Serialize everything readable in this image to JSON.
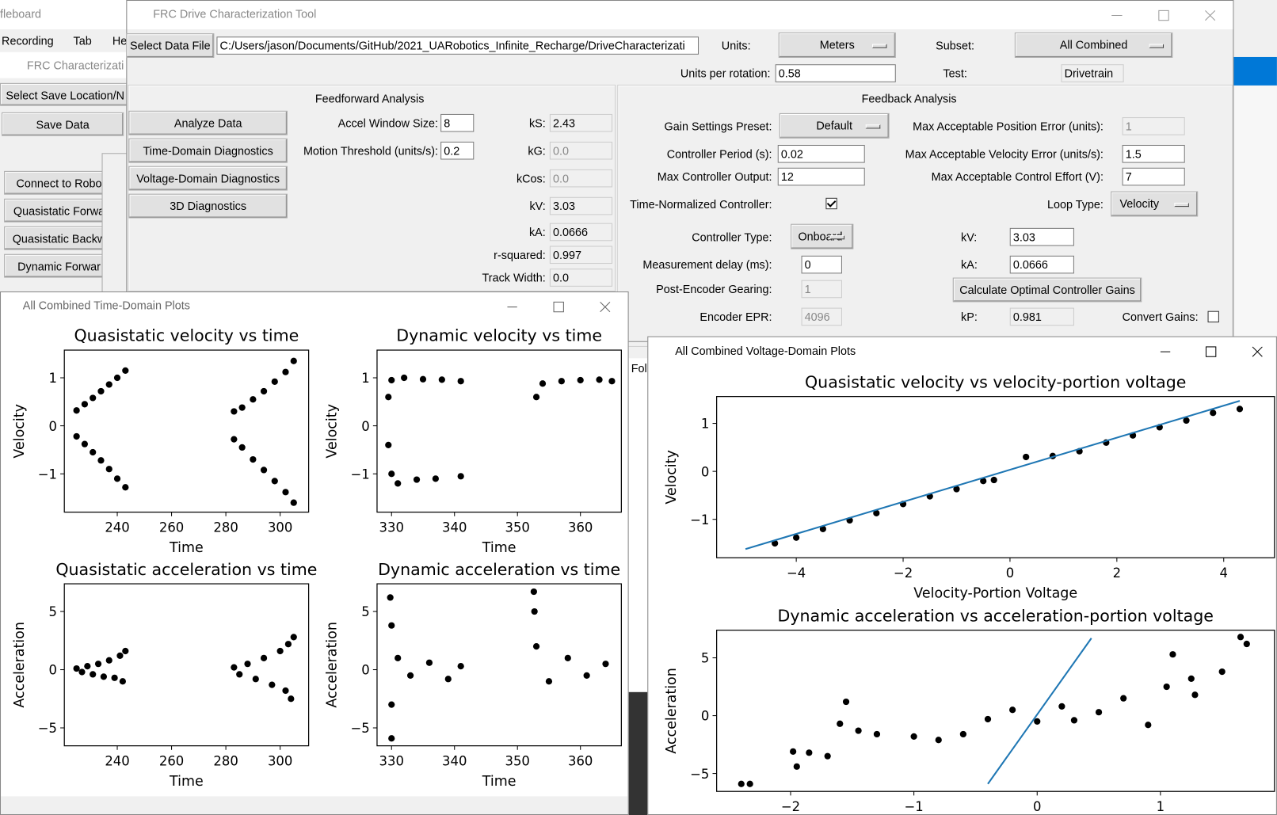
{
  "background": {
    "title": "fleboard",
    "menu": [
      "Recording",
      "Tab",
      "He"
    ],
    "char_window": {
      "title": "FRC Characterizati",
      "buttons": [
        "Select Save Location/N",
        "Save Data",
        "Connect to Robo",
        "Quasistatic Forwa",
        "Quasistatic Backw",
        "Dynamic Forwar"
      ]
    },
    "fragment": "Fol"
  },
  "main_window": {
    "title": "FRC Drive Characterization Tool",
    "select_button": "Select Data File",
    "file_path": "C:/Users/jason/Documents/GitHub/2021_UARobotics_Infinite_Recharge/DriveCharacterizati",
    "units_label": "Units:",
    "units": "Meters",
    "subset_label": "Subset:",
    "subset": "All Combined",
    "upr_label": "Units per rotation:",
    "upr": "0.58",
    "test_label": "Test:",
    "test": "Drivetrain",
    "feedforward": {
      "header": "Feedforward Analysis",
      "buttons": [
        "Analyze Data",
        "Time-Domain Diagnostics",
        "Voltage-Domain Diagnostics",
        "3D Diagnostics"
      ],
      "settings": [
        [
          "Accel Window Size:",
          "8"
        ],
        [
          "Motion Threshold (units/s):",
          "0.2"
        ]
      ],
      "results": [
        [
          "kS:",
          "2.43"
        ],
        [
          "kG:",
          "0.0"
        ],
        [
          "kCos:",
          "0.0"
        ],
        [
          "kV:",
          "3.03"
        ],
        [
          "kA:",
          "0.0666"
        ],
        [
          "r-squared:",
          "0.997"
        ],
        [
          "Track Width:",
          "0.0"
        ]
      ]
    },
    "feedback": {
      "header": "Feedback Analysis",
      "preset_label": "Gain Settings Preset:",
      "preset": "Default",
      "period_label": "Controller Period (s):",
      "period": "0.02",
      "output_label": "Max Controller Output:",
      "output": "12",
      "normalized_label": "Time-Normalized Controller:",
      "type_label": "Controller Type:",
      "type": "Onboard",
      "delay_label": "Measurement delay (ms):",
      "delay": "0",
      "gearing_label": "Post-Encoder Gearing:",
      "gearing": "1",
      "epr_label": "Encoder EPR:",
      "epr": "4096",
      "pos_err_label": "Max Acceptable Position Error (units):",
      "pos_err": "1",
      "vel_err_label": "Max Acceptable Velocity Error (units/s):",
      "vel_err": "1.5",
      "effort_label": "Max Acceptable Control Effort (V):",
      "effort": "7",
      "loop_label": "Loop Type:",
      "loop": "Velocity",
      "kv_label": "kV:",
      "kv": "3.03",
      "ka_label": "kA:",
      "ka": "0.0666",
      "calc_button": "Calculate Optimal Controller Gains",
      "kp_label": "kP:",
      "kp": "0.981",
      "convert_label": "Convert Gains:"
    }
  },
  "time_domain_window": {
    "title": "All Combined Time-Domain Plots"
  },
  "voltage_domain_window": {
    "title": "All Combined Voltage-Domain Plots"
  },
  "chart_data": [
    {
      "type": "scatter",
      "title": "Quasistatic velocity vs time",
      "x_label": "Time",
      "y_label": "Velocity",
      "xlim": [
        220.5,
        310.5
      ],
      "ylim": [
        -1.797,
        1.576
      ],
      "xticks": [
        240,
        260,
        280,
        300
      ],
      "yticks": [
        {
          "value": -1,
          "label": "−1"
        },
        0,
        1
      ],
      "series": [
        {
          "color": "#000000",
          "x": [
            225,
            228,
            231,
            234,
            237,
            240,
            243,
            225,
            228,
            231,
            234,
            237,
            240,
            243,
            283,
            286,
            290,
            294,
            298,
            302,
            305,
            283,
            286,
            290,
            294,
            298,
            302,
            305
          ],
          "values": [
            0.32,
            0.45,
            0.58,
            0.72,
            0.86,
            1.0,
            1.15,
            -0.22,
            -0.38,
            -0.55,
            -0.72,
            -0.9,
            -1.1,
            -1.28,
            0.3,
            0.38,
            0.55,
            0.72,
            0.92,
            1.12,
            1.35,
            -0.28,
            -0.45,
            -0.7,
            -0.92,
            -1.15,
            -1.38,
            -1.6
          ]
        }
      ]
    },
    {
      "type": "scatter",
      "title": "Dynamic velocity vs time",
      "x_label": "Time",
      "y_label": "Velocity",
      "xlim": [
        327.7,
        366.5
      ],
      "ylim": [
        -1.797,
        1.576
      ],
      "xticks": [
        330,
        340,
        350,
        360
      ],
      "yticks": [
        {
          "value": -1,
          "label": "−1"
        },
        0,
        1
      ],
      "series": [
        {
          "color": "#000000",
          "x": [
            329.5,
            330,
            332,
            335,
            338,
            341,
            329.5,
            330,
            331,
            334,
            337,
            341,
            353,
            354,
            357,
            360,
            363,
            365
          ],
          "values": [
            0.6,
            0.95,
            1.0,
            0.97,
            0.96,
            0.93,
            -0.4,
            -1.0,
            -1.2,
            -1.12,
            -1.1,
            -1.05,
            0.6,
            0.88,
            0.93,
            0.95,
            0.96,
            0.93
          ]
        }
      ]
    },
    {
      "type": "scatter",
      "title": "Quasistatic acceleration vs time",
      "x_label": "Time",
      "y_label": "Acceleration",
      "xlim": [
        220.5,
        310.5
      ],
      "ylim": [
        -6.54,
        7.38
      ],
      "xticks": [
        240,
        260,
        280,
        300
      ],
      "yticks": [
        {
          "value": -5,
          "label": "−5"
        },
        0,
        5
      ],
      "series": [
        {
          "color": "#000000",
          "x": [
            225,
            227,
            229,
            231,
            233,
            235,
            237,
            239,
            241,
            242,
            243,
            283,
            285,
            288,
            291,
            294,
            297,
            300,
            302,
            303,
            304,
            305
          ],
          "values": [
            0.1,
            -0.2,
            0.3,
            -0.4,
            0.5,
            -0.6,
            0.8,
            -0.7,
            1.2,
            -1.0,
            1.6,
            0.2,
            -0.4,
            0.5,
            -0.8,
            1.0,
            -1.3,
            1.6,
            -1.8,
            2.2,
            -2.5,
            2.8
          ]
        }
      ]
    },
    {
      "type": "scatter",
      "title": "Dynamic acceleration vs time",
      "x_label": "Time",
      "y_label": "Acceleration",
      "xlim": [
        327.7,
        366.5
      ],
      "ylim": [
        -6.54,
        7.38
      ],
      "xticks": [
        330,
        340,
        350,
        360
      ],
      "yticks": [
        {
          "value": -5,
          "label": "−5"
        },
        0,
        5
      ],
      "series": [
        {
          "color": "#000000",
          "x": [
            329.8,
            330,
            330,
            330,
            331,
            333,
            336,
            339,
            341,
            352.6,
            352.7,
            353,
            355,
            358,
            361,
            364
          ],
          "values": [
            6.2,
            3.8,
            -3,
            -5.9,
            1,
            -0.5,
            0.6,
            -0.8,
            0.3,
            6.7,
            5,
            2,
            -1,
            1,
            -0.5,
            0.5
          ]
        }
      ]
    },
    {
      "type": "scatter",
      "title": "Quasistatic velocity vs velocity-portion voltage",
      "x_label": "Velocity-Portion Voltage",
      "y_label": "Velocity",
      "xlim": [
        -5.49,
        4.95
      ],
      "ylim": [
        -1.8,
        1.56
      ],
      "xticks": [
        {
          "value": -4,
          "label": "−4"
        },
        {
          "value": -2,
          "label": "−2"
        },
        0,
        2,
        4
      ],
      "yticks": [
        {
          "value": -1,
          "label": "−1"
        },
        0,
        1
      ],
      "series": [
        {
          "color": "#000000",
          "x": [
            -4.4,
            -4.0,
            -3.5,
            -3.0,
            -2.5,
            -2.0,
            -1.5,
            -1.0,
            -0.5,
            -0.3,
            0.3,
            0.8,
            1.3,
            1.8,
            2.3,
            2.8,
            3.3,
            3.8,
            4.3
          ],
          "values": [
            -1.5,
            -1.38,
            -1.2,
            -1.02,
            -0.87,
            -0.68,
            -0.52,
            -0.37,
            -0.2,
            -0.18,
            0.3,
            0.32,
            0.42,
            0.6,
            0.75,
            0.92,
            1.06,
            1.22,
            1.3
          ]
        },
        {
          "type": "line",
          "color": "#1f77b4",
          "x": [
            -4.95,
            4.3
          ],
          "values": [
            -1.62,
            1.47
          ]
        }
      ]
    },
    {
      "type": "scatter",
      "title": "Dynamic acceleration vs acceleration-portion voltage",
      "y_label": "Acceleration",
      "xlim": [
        -2.6,
        1.925
      ],
      "ylim": [
        -6.55,
        7.39
      ],
      "xticks": [
        {
          "value": -2,
          "label": "−2"
        },
        {
          "value": -1,
          "label": "−1"
        },
        0,
        1
      ],
      "yticks": [
        {
          "value": -5,
          "label": "−5"
        },
        0,
        5
      ],
      "series": [
        {
          "color": "#000000",
          "x": [
            -2.4,
            -2.33,
            -1.98,
            -1.95,
            -1.85,
            -1.7,
            -1.6,
            -1.55,
            -1.45,
            -1.3,
            -1.0,
            -0.8,
            -0.6,
            -0.4,
            -0.2,
            0,
            0.2,
            0.3,
            0.5,
            0.7,
            0.9,
            1.05,
            1.1,
            1.25,
            1.28,
            1.5,
            1.65,
            1.7
          ],
          "values": [
            -5.9,
            -5.9,
            -3.1,
            -4.4,
            -3.2,
            -3.5,
            -0.7,
            1.2,
            -1.3,
            -1.6,
            -1.8,
            -2.1,
            -1.6,
            -0.3,
            0.5,
            -0.5,
            0.8,
            -0.4,
            0.3,
            1.5,
            -0.8,
            2.5,
            5.3,
            3.2,
            1.8,
            3.8,
            6.8,
            6.2
          ]
        },
        {
          "type": "line",
          "color": "#1f77b4",
          "x": [
            -0.4,
            0.44
          ],
          "values": [
            -5.9,
            6.7
          ]
        }
      ]
    }
  ]
}
